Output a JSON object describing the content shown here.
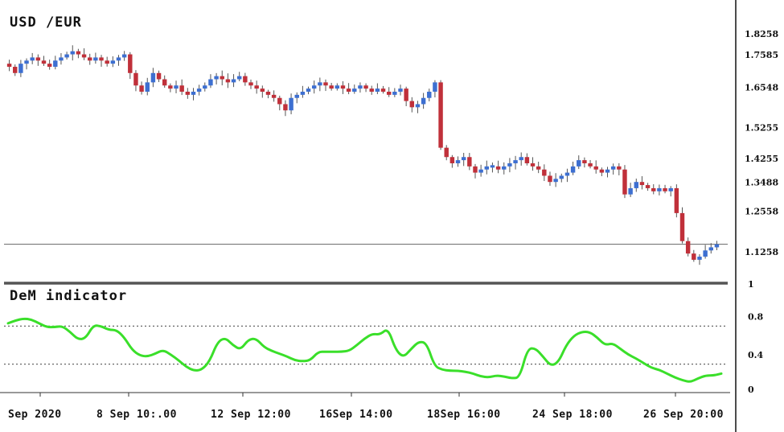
{
  "chart_data": [
    {
      "type": "candlestick",
      "title": "USD /EUR",
      "ylim": [
        1.03,
        1.87
      ],
      "yticks": [
        "1.8258",
        "1.7585",
        "1.6548",
        "1.5255",
        "1.4255",
        "1.3488",
        "1.2558",
        "1.1258",
        "1"
      ],
      "ytick_values": [
        1.8258,
        1.7585,
        1.6548,
        1.5255,
        1.4255,
        1.3488,
        1.2558,
        1.1258,
        1.03
      ],
      "reference_line": 1.15,
      "colors": {
        "up": "#3d6fd1",
        "down": "#c0303a",
        "wick": "#555555"
      },
      "close_series": [
        1.72,
        1.7,
        1.73,
        1.74,
        1.75,
        1.74,
        1.73,
        1.72,
        1.74,
        1.75,
        1.76,
        1.77,
        1.76,
        1.75,
        1.74,
        1.75,
        1.74,
        1.73,
        1.74,
        1.75,
        1.76,
        1.7,
        1.66,
        1.64,
        1.67,
        1.7,
        1.68,
        1.66,
        1.65,
        1.66,
        1.64,
        1.63,
        1.64,
        1.65,
        1.66,
        1.68,
        1.69,
        1.68,
        1.67,
        1.68,
        1.69,
        1.67,
        1.66,
        1.65,
        1.64,
        1.63,
        1.62,
        1.6,
        1.58,
        1.62,
        1.63,
        1.64,
        1.65,
        1.66,
        1.67,
        1.66,
        1.65,
        1.66,
        1.65,
        1.64,
        1.65,
        1.66,
        1.65,
        1.64,
        1.65,
        1.64,
        1.63,
        1.64,
        1.65,
        1.61,
        1.59,
        1.6,
        1.62,
        1.64,
        1.67,
        1.46,
        1.43,
        1.41,
        1.42,
        1.43,
        1.4,
        1.38,
        1.39,
        1.4,
        1.4,
        1.39,
        1.4,
        1.41,
        1.42,
        1.43,
        1.41,
        1.4,
        1.39,
        1.37,
        1.35,
        1.36,
        1.37,
        1.38,
        1.4,
        1.42,
        1.41,
        1.4,
        1.39,
        1.38,
        1.39,
        1.4,
        1.39,
        1.31,
        1.33,
        1.35,
        1.34,
        1.33,
        1.32,
        1.33,
        1.32,
        1.33,
        1.25,
        1.16,
        1.12,
        1.1,
        1.11,
        1.13,
        1.14,
        1.15
      ]
    },
    {
      "type": "line",
      "title": "DeM indicator",
      "ylim": [
        0,
        1.0
      ],
      "yticks": [
        "1",
        "0.8",
        "0.4",
        "0"
      ],
      "ytick_values": [
        1.0,
        0.8,
        0.4,
        0
      ],
      "thresholds": [
        0.7,
        0.3
      ],
      "color": "#3adf2a",
      "x_labels": [
        "Sep 2020",
        "8 Sep 10:.00",
        "12 Sep 12:00",
        "16Sep 14:00",
        "18Sep 16:00",
        "24 Sep 18:00",
        "26 Sep 20:00"
      ],
      "values": [
        0.73,
        0.76,
        0.78,
        0.77,
        0.73,
        0.69,
        0.69,
        0.7,
        0.64,
        0.56,
        0.57,
        0.71,
        0.7,
        0.66,
        0.66,
        0.58,
        0.45,
        0.39,
        0.38,
        0.41,
        0.45,
        0.4,
        0.34,
        0.27,
        0.23,
        0.24,
        0.33,
        0.53,
        0.58,
        0.5,
        0.45,
        0.56,
        0.57,
        0.48,
        0.44,
        0.41,
        0.38,
        0.34,
        0.33,
        0.34,
        0.43,
        0.43,
        0.43,
        0.43,
        0.44,
        0.5,
        0.57,
        0.62,
        0.61,
        0.68,
        0.45,
        0.37,
        0.46,
        0.54,
        0.52,
        0.28,
        0.24,
        0.23,
        0.23,
        0.22,
        0.2,
        0.17,
        0.16,
        0.18,
        0.17,
        0.15,
        0.16,
        0.46,
        0.47,
        0.38,
        0.28,
        0.32,
        0.5,
        0.6,
        0.64,
        0.64,
        0.58,
        0.5,
        0.52,
        0.46,
        0.4,
        0.36,
        0.31,
        0.26,
        0.24,
        0.2,
        0.16,
        0.13,
        0.11,
        0.15,
        0.18,
        0.18,
        0.2
      ]
    }
  ]
}
